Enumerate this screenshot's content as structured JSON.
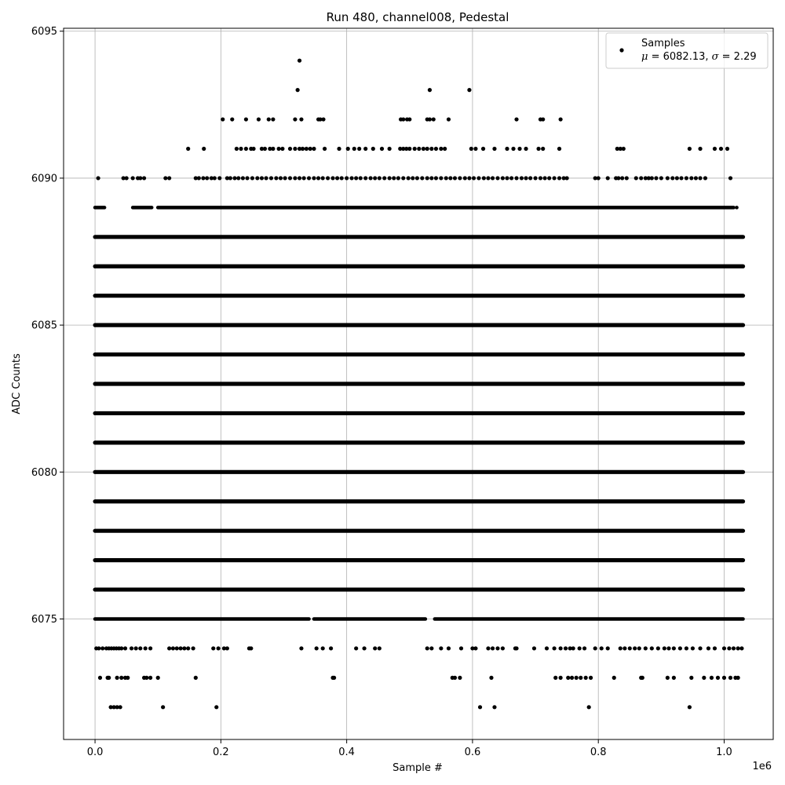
{
  "chart_data": {
    "type": "scatter",
    "title": "Run 480, channel008, Pedestal",
    "xlabel": "Sample #",
    "ylabel": "ADC Counts",
    "x_offset_label": "1e6",
    "xlim": [
      -50000,
      1078000
    ],
    "ylim": [
      6070.9,
      6095.1
    ],
    "x_ticks": [
      0,
      200000,
      400000,
      600000,
      800000,
      1000000
    ],
    "x_tick_labels": [
      "0.0",
      "0.2",
      "0.4",
      "0.6",
      "0.8",
      "1.0"
    ],
    "y_ticks": [
      6075,
      6080,
      6085,
      6090,
      6095
    ],
    "y_tick_labels": [
      "6075",
      "6080",
      "6085",
      "6090",
      "6095"
    ],
    "grid": true,
    "legend": {
      "placement": "top-right",
      "series_name": "Samples",
      "stats_mu": "μ",
      "stats_mu_value": " = 6082.13, ",
      "stats_sigma": "σ",
      "stats_sigma_value": " = 2.29"
    },
    "series": [
      {
        "name": "Samples",
        "color": "#000000",
        "marker": "circle",
        "x_max": 1030000,
        "levels": [
          {
            "y": 6072,
            "x": [
              25000,
              30000,
              35000,
              40000,
              108000,
              193000,
              612000,
              635000,
              785000,
              945000
            ]
          },
          {
            "y": 6073,
            "x": [
              8000,
              20000,
              22000,
              35000,
              42000,
              48000,
              52000,
              78000,
              82000,
              88000,
              100000,
              160000,
              378000,
              380000,
              568000,
              572000,
              580000,
              630000,
              732000,
              740000,
              752000,
              758000,
              765000,
              772000,
              780000,
              788000,
              825000,
              868000,
              870000,
              910000,
              920000,
              948000,
              968000,
              980000,
              990000,
              1000000,
              1010000,
              1018000,
              1022000
            ]
          },
          {
            "y": 6074,
            "x": [
              2000,
              6000,
              12000,
              18000,
              22000,
              26000,
              30000,
              34000,
              38000,
              42000,
              48000,
              58000,
              65000,
              72000,
              80000,
              88000,
              118000,
              124000,
              130000,
              136000,
              142000,
              148000,
              156000,
              188000,
              196000,
              205000,
              210000,
              245000,
              248000,
              328000,
              352000,
              362000,
              375000,
              415000,
              428000,
              445000,
              452000,
              528000,
              535000,
              550000,
              562000,
              582000,
              600000,
              605000,
              625000,
              632000,
              640000,
              648000,
              668000,
              670000,
              698000,
              718000,
              730000,
              740000,
              748000,
              755000,
              760000,
              770000,
              778000,
              795000,
              805000,
              815000,
              835000,
              842000,
              850000,
              858000,
              865000,
              875000,
              885000,
              895000,
              905000,
              912000,
              920000,
              930000,
              940000,
              950000,
              962000,
              975000,
              985000,
              1000000,
              1008000,
              1015000,
              1022000,
              1028000
            ]
          },
          {
            "y": 6076,
            "x": []
          },
          {
            "y": 6077,
            "x": []
          },
          {
            "y": 6078,
            "x": []
          },
          {
            "y": 6079,
            "x": []
          },
          {
            "y": 6080,
            "x": []
          },
          {
            "y": 6081,
            "x": []
          },
          {
            "y": 6082,
            "x": []
          },
          {
            "y": 6083,
            "x": []
          },
          {
            "y": 6084,
            "x": []
          },
          {
            "y": 6085,
            "x": []
          },
          {
            "y": 6086,
            "x": []
          },
          {
            "y": 6087,
            "x": []
          },
          {
            "y": 6088,
            "x": []
          },
          {
            "y": 6090,
            "x": [
              5000,
              45000,
              50000,
              60000,
              68000,
              72000,
              78000,
              112000,
              118000,
              160000,
              165000,
              172000,
              178000,
              185000,
              190000,
              198000,
              210000,
              215000,
              222000,
              228000,
              235000,
              242000,
              250000,
              258000,
              265000,
              272000,
              280000,
              288000,
              295000,
              302000,
              310000,
              318000,
              325000,
              332000,
              340000,
              348000,
              355000,
              362000,
              370000,
              378000,
              385000,
              392000,
              400000,
              408000,
              415000,
              422000,
              430000,
              438000,
              445000,
              452000,
              460000,
              468000,
              475000,
              482000,
              490000,
              498000,
              505000,
              512000,
              520000,
              528000,
              535000,
              542000,
              550000,
              558000,
              565000,
              572000,
              580000,
              588000,
              595000,
              602000,
              610000,
              618000,
              625000,
              632000,
              640000,
              648000,
              655000,
              662000,
              670000,
              678000,
              685000,
              692000,
              700000,
              708000,
              715000,
              722000,
              730000,
              738000,
              745000,
              750000,
              795000,
              800000,
              815000,
              828000,
              832000,
              838000,
              845000,
              860000,
              868000,
              875000,
              880000,
              885000,
              892000,
              900000,
              910000,
              918000,
              925000,
              932000,
              940000,
              948000,
              955000,
              962000,
              970000,
              1010000
            ]
          },
          {
            "y": 6091,
            "x": [
              148000,
              173000,
              225000,
              232000,
              240000,
              248000,
              252000,
              265000,
              270000,
              278000,
              283000,
              292000,
              298000,
              310000,
              318000,
              325000,
              330000,
              336000,
              342000,
              348000,
              365000,
              388000,
              402000,
              412000,
              420000,
              430000,
              442000,
              456000,
              468000,
              485000,
              490000,
              495000,
              500000,
              508000,
              515000,
              522000,
              528000,
              535000,
              542000,
              550000,
              556000,
              598000,
              605000,
              617000,
              635000,
              655000,
              665000,
              675000,
              685000,
              705000,
              712000,
              738000,
              830000,
              835000,
              840000,
              945000,
              962000,
              985000,
              995000,
              1005000
            ]
          },
          {
            "y": 6092,
            "x": [
              203000,
              218000,
              240000,
              260000,
              276000,
              283000,
              318000,
              328000,
              355000,
              358000,
              363000,
              486000,
              490000,
              496000,
              500000,
              528000,
              532000,
              538000,
              562000,
              670000,
              708000,
              712000,
              740000
            ]
          },
          {
            "y": 6093,
            "x": [
              322000,
              532000,
              595000
            ]
          },
          {
            "y": 6094,
            "x": [
              325000
            ]
          }
        ]
      }
    ]
  }
}
